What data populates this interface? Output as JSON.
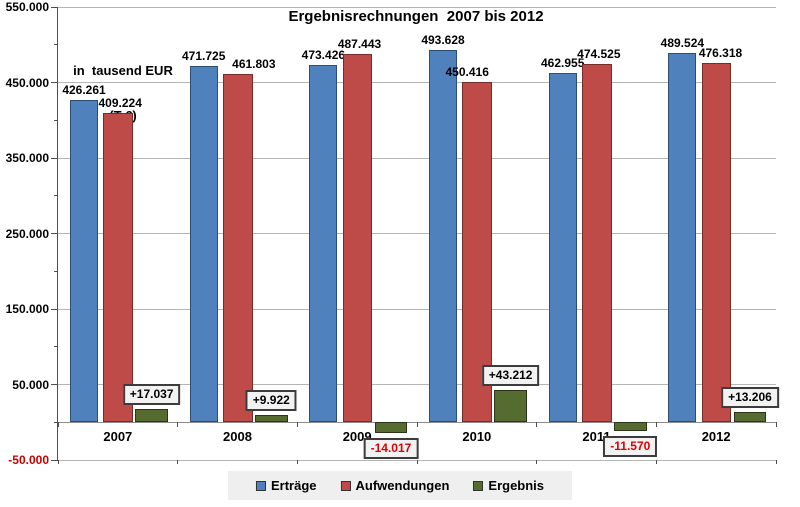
{
  "chart_data": {
    "type": "bar",
    "title": "Ergebnisrechnungen  2007 bis 2012",
    "unit_note": [
      "in  tausend EUR",
      "(T €)"
    ],
    "categories": [
      "2007",
      "2008",
      "2009",
      "2010",
      "2011",
      "2012"
    ],
    "series": [
      {
        "key": "ertraege",
        "name": "Erträge",
        "color": "#4f81bd",
        "border": "#2c4d75",
        "values": [
          426261,
          471725,
          473426,
          493628,
          462955,
          489524
        ],
        "labels": [
          "426.261",
          "471.725",
          "473.426",
          "493.628",
          "462.955",
          "489.524"
        ],
        "label_dx": [
          0,
          0,
          0,
          0,
          0,
          0
        ]
      },
      {
        "key": "aufwendungen",
        "name": "Aufwendungen",
        "color": "#be4b48",
        "border": "#772c2a",
        "values": [
          409224,
          461803,
          487443,
          450416,
          474525,
          476318
        ],
        "labels": [
          "409.224",
          "461.803",
          "487.443",
          "450.416",
          "474.525",
          "476.318"
        ],
        "label_dx": [
          2,
          16,
          2,
          -10,
          2,
          4
        ]
      },
      {
        "key": "ergebnis",
        "name": "Ergebnis",
        "color": "#556b2f",
        "border": "#2a3617",
        "values": [
          17037,
          9922,
          -14017,
          43212,
          -11570,
          13206
        ],
        "labels": [
          "+17.037",
          "+9.922",
          "-14.017",
          "+43.212",
          "-11.570",
          "+13.206"
        ],
        "label_dx": [
          0,
          0,
          0,
          0,
          0,
          0
        ]
      }
    ],
    "ylim": [
      -50000,
      550000
    ],
    "y_major_step": 100000,
    "y_minor_step": 50000,
    "y_tick_labels": [
      "550.000",
      "450.000",
      "350.000",
      "250.000",
      "150.000",
      "50.000",
      "-50.000"
    ],
    "grid": true,
    "legend_position": "bottom",
    "colors": {
      "gridline": "#b5b5b5",
      "zero_line": "#8c8c8c",
      "axis": "#4d4d4d",
      "negative_text": "#e00000",
      "negative_axis_label": "#c80000",
      "result_box_bg": "#f2f2f2",
      "result_box_border": "#3c3c3c",
      "legend_bg": "#efefef",
      "background": "#ffffff"
    }
  }
}
